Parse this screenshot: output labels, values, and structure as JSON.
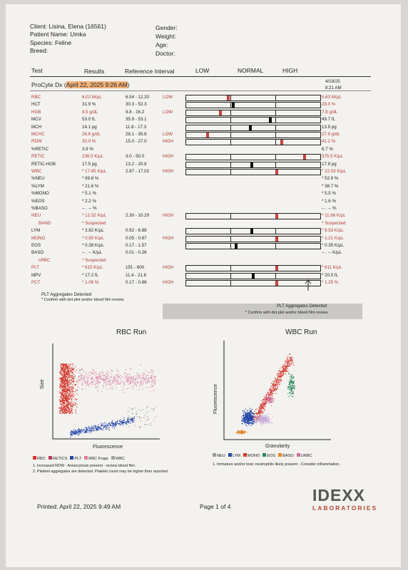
{
  "patient": {
    "client": "Client: Lisina, Elena (16561)",
    "patient_name": "Patient Name: Umka",
    "species": "Species: Feline",
    "breed": "Breed:",
    "gender": "Gender:",
    "weight": "Weight:",
    "age": "Age:",
    "doctor": "Doctor:"
  },
  "table_header": {
    "test": "Test",
    "results": "Results",
    "reference": "Reference Interval",
    "low": "LOW",
    "normal": "NORMAL",
    "high": "HIGH"
  },
  "run": {
    "title_prefix": "ProCyte Dx (",
    "title_date": "April 22, 2025 9:26 AM",
    "title_suffix": ")",
    "prev_date": "4/19/25",
    "prev_time": "8:21 AM"
  },
  "rows": [
    {
      "test": "RBC",
      "result": "6.02 M/µL",
      "ref": "6.54 - 12.20",
      "flag": "LOW",
      "prev": "5.63 M/µL",
      "red": true,
      "prev_red": true,
      "marker": 0.31,
      "marker_color": "#c0453d"
    },
    {
      "test": "HCT",
      "result": "31.9 %",
      "ref": "30.3 - 52.3",
      "flag": "",
      "prev": "28.0 %",
      "red": false,
      "prev_red": true,
      "marker": 0.35,
      "marker_color": "#111"
    },
    {
      "test": "HGB",
      "result": "8.5 g/dL",
      "ref": "9.8 - 16.2",
      "flag": "LOW",
      "prev": "7.8 g/dL",
      "red": true,
      "prev_red": true,
      "marker": 0.25,
      "marker_color": "#c0453d"
    },
    {
      "test": "MCV",
      "result": "53.0 fL",
      "ref": "35.9 - 53.1",
      "flag": "",
      "prev": "49.7 fL",
      "red": false,
      "prev_red": false,
      "marker": 0.63,
      "marker_color": "#111"
    },
    {
      "test": "MCH",
      "result": "14.1 pg",
      "ref": "11.8 - 17.3",
      "flag": "",
      "prev": "13.9 pg",
      "red": false,
      "prev_red": false,
      "marker": 0.48,
      "marker_color": "#111"
    },
    {
      "test": "MCHC",
      "result": "26.6 g/dL",
      "ref": "28.1 - 35.8",
      "flag": "LOW",
      "prev": "27.9 g/dL",
      "red": true,
      "prev_red": true,
      "marker": 0.15,
      "marker_color": "#c0453d"
    },
    {
      "test": "RDW",
      "result": "30.0 %",
      "ref": "15.0 - 27.0",
      "flag": "HIGH",
      "prev": "41.2 %",
      "red": true,
      "prev_red": true,
      "marker": 0.72,
      "marker_color": "#c0453d"
    },
    {
      "test": "%RETIC",
      "result": "3.9 %",
      "ref": "",
      "flag": "",
      "prev": "6.7 %",
      "red": false,
      "prev_red": false,
      "marker": null,
      "marker_color": ""
    },
    {
      "test": "RETIC",
      "result": "236.0 K/µL",
      "ref": "3.0 - 50.0",
      "flag": "HIGH",
      "prev": "375.5 K/µL",
      "red": true,
      "prev_red": true,
      "marker": 0.89,
      "marker_color": "#c0453d"
    },
    {
      "test": "RETIC-HGB",
      "result": "17.5 pg",
      "ref": "13.2 - 20.8",
      "flag": "",
      "prev": "17.8 pg",
      "red": false,
      "prev_red": false,
      "marker": 0.49,
      "marker_color": "#111"
    },
    {
      "test": "WBC",
      "result": "* 17.65 K/µL",
      "ref": "2.87 - 17.02",
      "flag": "HIGH",
      "prev": "* 22.03 K/µL",
      "red": true,
      "prev_red": true,
      "marker": 0.68,
      "marker_color": "#c0453d"
    },
    {
      "test": "%NEU",
      "result": "* 69.8 %",
      "ref": "",
      "flag": "",
      "prev": "* 52.9 %",
      "red": false,
      "prev_red": false,
      "marker": null,
      "marker_color": ""
    },
    {
      "test": "%LYM",
      "result": "* 21.6 %",
      "ref": "",
      "flag": "",
      "prev": "* 38.7 %",
      "red": false,
      "prev_red": false,
      "marker": null,
      "marker_color": ""
    },
    {
      "test": "%MONO",
      "result": "* 5.1 %",
      "ref": "",
      "flag": "",
      "prev": "* 5.5 %",
      "red": false,
      "prev_red": false,
      "marker": null,
      "marker_color": ""
    },
    {
      "test": "%EOS",
      "result": "* 2.2 %",
      "ref": "",
      "flag": "",
      "prev": "* 1.6 %",
      "red": false,
      "prev_red": false,
      "marker": null,
      "marker_color": ""
    },
    {
      "test": "%BASO",
      "result": "-- . -- %",
      "ref": "",
      "flag": "",
      "prev": "-- . -- %",
      "red": false,
      "prev_red": false,
      "marker": null,
      "marker_color": ""
    },
    {
      "test": "NEU",
      "result": "* 12.32 K/µL",
      "ref": "2.30 - 10.29",
      "flag": "HIGH",
      "prev": "* 11.66 K/µL",
      "red": true,
      "prev_red": true,
      "marker": 0.68,
      "marker_color": "#c0453d"
    },
    {
      "test": "BAND",
      "result": "* Suspected",
      "ref": "",
      "flag": "",
      "prev": "* Suspected",
      "red": true,
      "prev_red": true,
      "marker": null,
      "marker_color": "",
      "indent": true
    },
    {
      "test": "LYM",
      "result": "* 3.82 K/µL",
      "ref": "0.92 - 6.88",
      "flag": "",
      "prev": "* 8.53 K/µL",
      "red": false,
      "prev_red": true,
      "marker": 0.49,
      "marker_color": "#111"
    },
    {
      "test": "MONO",
      "result": "* 0.90 K/µL",
      "ref": "0.05 - 0.67",
      "flag": "HIGH",
      "prev": "* 1.21 K/µL",
      "red": true,
      "prev_red": true,
      "marker": 0.68,
      "marker_color": "#c0453d"
    },
    {
      "test": "EOS",
      "result": "* 0.38 K/µL",
      "ref": "0.17 - 1.57",
      "flag": "",
      "prev": "* 0.35 K/µL",
      "red": false,
      "prev_red": false,
      "marker": 0.37,
      "marker_color": "#111"
    },
    {
      "test": "BASO",
      "result": "-- . -- K/µL",
      "ref": "0.01 - 0.26",
      "flag": "",
      "prev": "-- . -- K/µL",
      "red": false,
      "prev_red": false,
      "marker": null,
      "marker_color": ""
    },
    {
      "test": "nRBC",
      "result": "* Suspected",
      "ref": "",
      "flag": "",
      "prev": "",
      "red": true,
      "prev_red": false,
      "marker": null,
      "marker_color": "",
      "indent": true
    },
    {
      "test": "PLT",
      "result": "* 615 K/µL",
      "ref": "151 - 600",
      "flag": "HIGH",
      "prev": "* 611 K/µL",
      "red": true,
      "prev_red": true,
      "marker": 0.68,
      "marker_color": "#c0453d"
    },
    {
      "test": "MPV",
      "result": "* 17.2 fL",
      "ref": "11.4 - 21.6",
      "flag": "",
      "prev": "* 20.5 fL",
      "red": false,
      "prev_red": false,
      "marker": 0.5,
      "marker_color": "#111"
    },
    {
      "test": "PCT",
      "result": "* 1.06 %",
      "ref": "0.17 - 0.86",
      "flag": "HIGH",
      "prev": "* 1.25 %",
      "red": true,
      "prev_red": true,
      "marker": 0.68,
      "marker_color": "#c0453d"
    }
  ],
  "footnotes": {
    "plt_aggregates": "PLT Aggregates Detected",
    "confirm": "* Confirm with dot plot and/or blood film review.",
    "plt_aggregates_prev": "PLT Aggregates Detected",
    "confirm_prev": "* Confirm with dot plot and/or blood film review."
  },
  "rbc_plot": {
    "title": "RBC Run",
    "ylabel": "Size",
    "xlabel": "Fluorescence",
    "legend": [
      {
        "label": "RBC",
        "color": "#d2382e"
      },
      {
        "label": "RETICS",
        "color": "#c0375a"
      },
      {
        "label": "PLT",
        "color": "#2547a8"
      },
      {
        "label": "RBC Frags",
        "color": "#e07aa0"
      },
      {
        "label": "WBC",
        "color": "#a0a0a0"
      }
    ],
    "notes": [
      "1. Increased RDW - Anisocytosis present - review blood film.",
      "2. Platelet aggregates are detected. Platelet count may be higher than reported."
    ]
  },
  "wbc_plot": {
    "title": "WBC Run",
    "ylabel": "Fluorescence",
    "xlabel": "Granularity",
    "legend": [
      {
        "label": "NEU",
        "color": "#9a9a9a"
      },
      {
        "label": "LYM",
        "color": "#2547a8"
      },
      {
        "label": "MONO",
        "color": "#d2382e"
      },
      {
        "label": "EOS",
        "color": "#2f8a5a"
      },
      {
        "label": "BASO",
        "color": "#e08a2e"
      },
      {
        "label": "URBC",
        "color": "#d36b9a"
      }
    ],
    "notes": [
      "1. Immature and/or toxic neutrophils likely present - Consider inflammation."
    ]
  },
  "footer": {
    "printed": "Printed: April 22, 2025 9:49 AM",
    "page": "Page 1 of 4",
    "logo": "IDEXX",
    "logo_sub": "LABORATORIES"
  }
}
